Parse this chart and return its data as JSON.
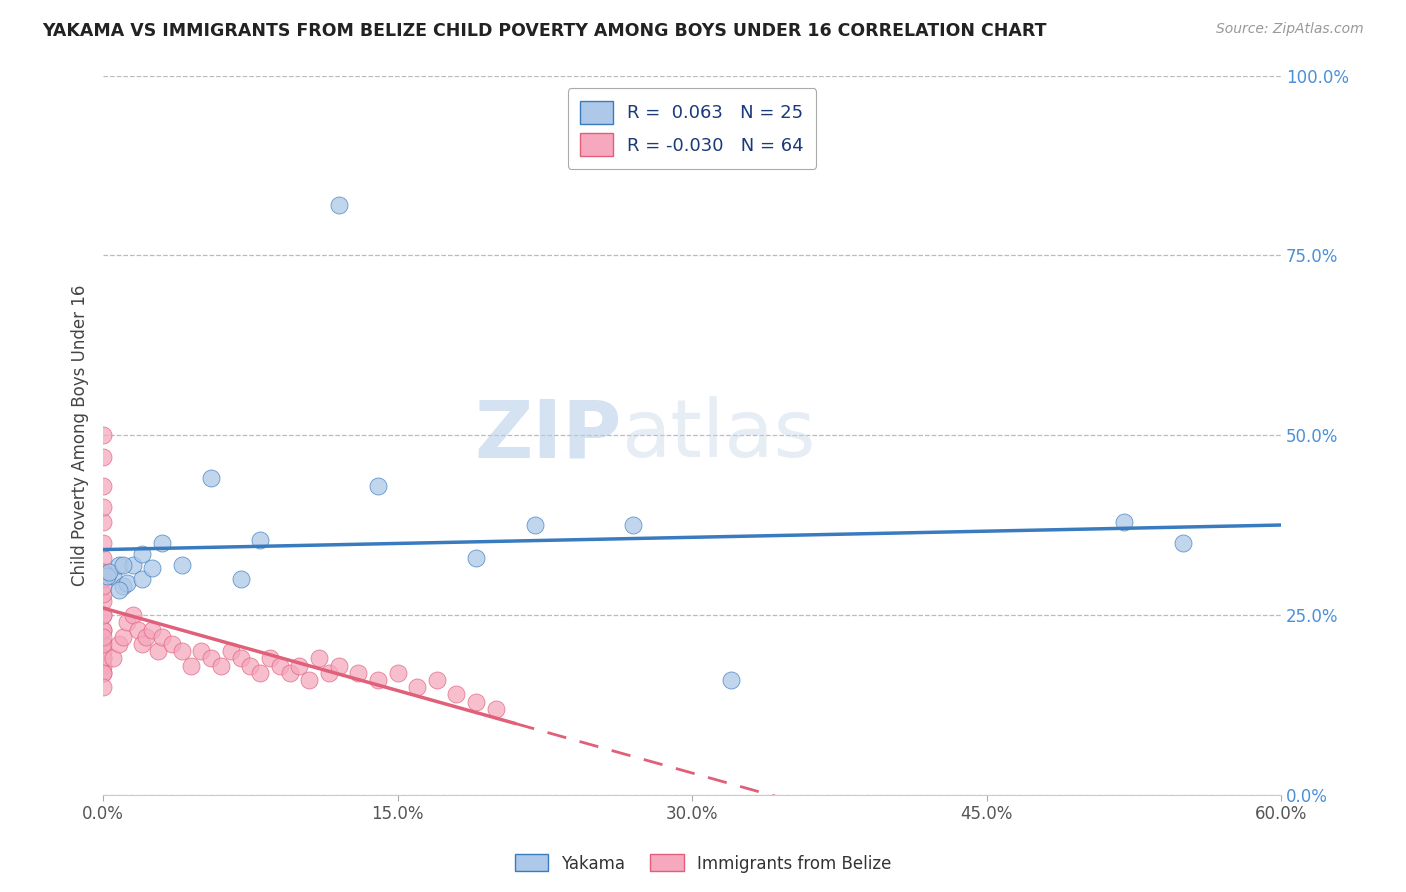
{
  "title": "YAKAMA VS IMMIGRANTS FROM BELIZE CHILD POVERTY AMONG BOYS UNDER 16 CORRELATION CHART",
  "source": "Source: ZipAtlas.com",
  "ylabel": "Child Poverty Among Boys Under 16",
  "xlim": [
    0.0,
    0.6
  ],
  "ylim": [
    0.0,
    1.0
  ],
  "xtick_vals": [
    0.0,
    0.15,
    0.3,
    0.45,
    0.6
  ],
  "ytick_vals": [
    0.0,
    0.25,
    0.5,
    0.75,
    1.0
  ],
  "yakama_color": "#adc8e8",
  "belize_color": "#f5a8be",
  "trendline_yakama_color": "#3a7bbf",
  "trendline_belize_color": "#e0607a",
  "yakama_r": 0.063,
  "yakama_n": 25,
  "belize_r": -0.03,
  "belize_n": 64,
  "watermark_zip": "ZIP",
  "watermark_atlas": "atlas",
  "background_color": "#ffffff",
  "grid_color": "#bbbbbb",
  "legend_text_color": "#1a3a7a",
  "ytick_color": "#4a90d9",
  "xtick_color": "#555555",
  "title_color": "#222222",
  "source_color": "#999999",
  "ylabel_color": "#444444",
  "yakama_x": [
    0.005,
    0.008,
    0.01,
    0.012,
    0.015,
    0.02,
    0.02,
    0.025,
    0.04,
    0.055,
    0.07,
    0.08,
    0.12,
    0.14,
    0.19,
    0.22,
    0.27,
    0.32,
    0.52,
    0.55,
    0.002,
    0.003,
    0.008,
    0.01,
    0.03
  ],
  "yakama_y": [
    0.305,
    0.32,
    0.29,
    0.295,
    0.32,
    0.3,
    0.335,
    0.315,
    0.32,
    0.44,
    0.3,
    0.355,
    0.82,
    0.43,
    0.33,
    0.375,
    0.375,
    0.16,
    0.38,
    0.35,
    0.305,
    0.31,
    0.285,
    0.32,
    0.35
  ],
  "belize_x": [
    0.0,
    0.0,
    0.0,
    0.0,
    0.0,
    0.0,
    0.0,
    0.0,
    0.0,
    0.0,
    0.0,
    0.0,
    0.0,
    0.0,
    0.0,
    0.0,
    0.0,
    0.0,
    0.0,
    0.0,
    0.0,
    0.0,
    0.0,
    0.0,
    0.0,
    0.0,
    0.0,
    0.005,
    0.008,
    0.01,
    0.012,
    0.015,
    0.018,
    0.02,
    0.022,
    0.025,
    0.028,
    0.03,
    0.035,
    0.04,
    0.045,
    0.05,
    0.055,
    0.06,
    0.065,
    0.07,
    0.075,
    0.08,
    0.085,
    0.09,
    0.095,
    0.1,
    0.105,
    0.11,
    0.115,
    0.12,
    0.13,
    0.14,
    0.15,
    0.16,
    0.17,
    0.18,
    0.19,
    0.2
  ],
  "belize_y": [
    0.19,
    0.21,
    0.23,
    0.25,
    0.27,
    0.28,
    0.3,
    0.31,
    0.33,
    0.35,
    0.38,
    0.4,
    0.43,
    0.47,
    0.5,
    0.2,
    0.18,
    0.17,
    0.19,
    0.21,
    0.23,
    0.25,
    0.29,
    0.31,
    0.17,
    0.15,
    0.22,
    0.19,
    0.21,
    0.22,
    0.24,
    0.25,
    0.23,
    0.21,
    0.22,
    0.23,
    0.2,
    0.22,
    0.21,
    0.2,
    0.18,
    0.2,
    0.19,
    0.18,
    0.2,
    0.19,
    0.18,
    0.17,
    0.19,
    0.18,
    0.17,
    0.18,
    0.16,
    0.19,
    0.17,
    0.18,
    0.17,
    0.16,
    0.17,
    0.15,
    0.16,
    0.14,
    0.13,
    0.12
  ]
}
